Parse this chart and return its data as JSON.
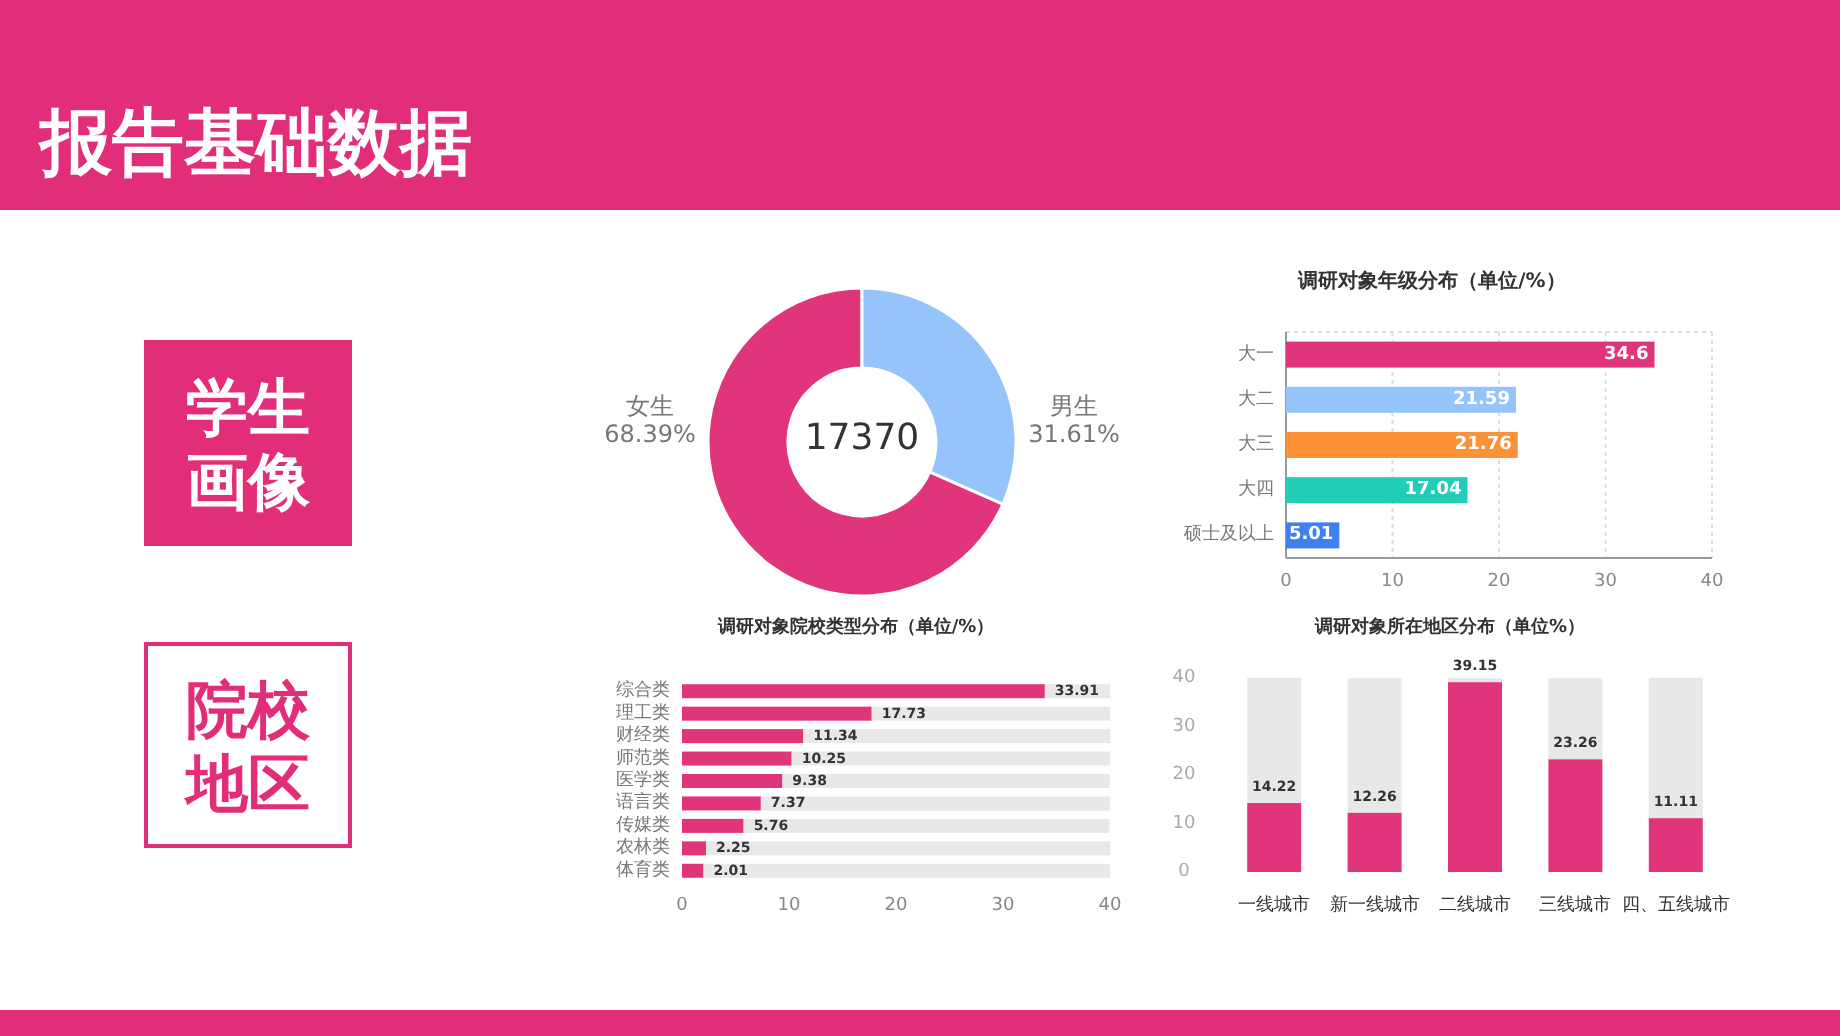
{
  "chart_data": [
    {
      "type": "other",
      "title": "报告基础数据",
      "annotations": [
        "学生画像",
        "院校地区"
      ]
    },
    {
      "type": "donut",
      "categories": [
        "女生",
        "男生"
      ],
      "values": [
        68.39,
        31.61
      ],
      "colors": [
        "#e0357a",
        "#94c4fb"
      ],
      "value_labels": [
        "68.39%",
        "31.61%"
      ],
      "annotations": [
        "17370"
      ]
    },
    {
      "type": "bar",
      "orientation": "horizontal",
      "title": "调研对象年级分布（单位/%）",
      "categories": [
        "大一",
        "大二",
        "大三",
        "大四",
        "硕士及以上"
      ],
      "values": [
        34.6,
        21.59,
        21.76,
        17.04,
        5.01
      ],
      "colors": [
        "#e0357a",
        "#94c4fb",
        "#fb9238",
        "#22cdb7",
        "#4180f0"
      ],
      "xlim": [
        0,
        40
      ],
      "xticks": [
        0,
        10,
        20,
        30,
        40
      ],
      "grid": true,
      "data_labels": true
    },
    {
      "type": "bar",
      "orientation": "horizontal",
      "stacked": true,
      "title": "调研对象院校类型分布（单位/%）",
      "categories": [
        "综合类",
        "理工类",
        "财经类",
        "师范类",
        "医学类",
        "语言类",
        "传媒类",
        "农林类",
        "体育类"
      ],
      "xlim": [
        0,
        40
      ],
      "xticks": [
        0,
        10,
        20,
        30,
        40
      ],
      "series": [
        {
          "color": "#e0357a",
          "values": [
            33.91,
            17.73,
            11.34,
            10.25,
            9.38,
            7.37,
            5.76,
            2.25,
            2.01
          ],
          "value_labels": [
            "33.91",
            "17.73",
            "11.34",
            "10.25",
            "9.38",
            "7.37",
            "5.76",
            "2.25",
            "2.01"
          ]
        },
        {
          "color": "#e8e8e8",
          "values": [
            6.1,
            22.3,
            28.7,
            29.8,
            30.6,
            32.6,
            34.2,
            37.8,
            38
          ]
        }
      ]
    },
    {
      "type": "bar",
      "stacked": true,
      "title": "调研对象所在地区分布（单位%）",
      "categories": [
        "一线城市",
        "新一线城市",
        "二线城市",
        "三线城市",
        "四、五线城市"
      ],
      "ylim": [
        0,
        40
      ],
      "yticks": [
        0,
        10,
        20,
        30,
        40
      ],
      "series": [
        {
          "color": "#e0357a",
          "values": [
            14.22,
            12.26,
            39.15,
            23.26,
            11.11
          ],
          "value_labels": [
            "14.22",
            "12.26",
            "39.15",
            "23.26",
            "11.11"
          ]
        },
        {
          "color": "#e8e8e8",
          "values": [
            25.8,
            27.7,
            0.9,
            16.7,
            28.9
          ]
        }
      ]
    }
  ]
}
